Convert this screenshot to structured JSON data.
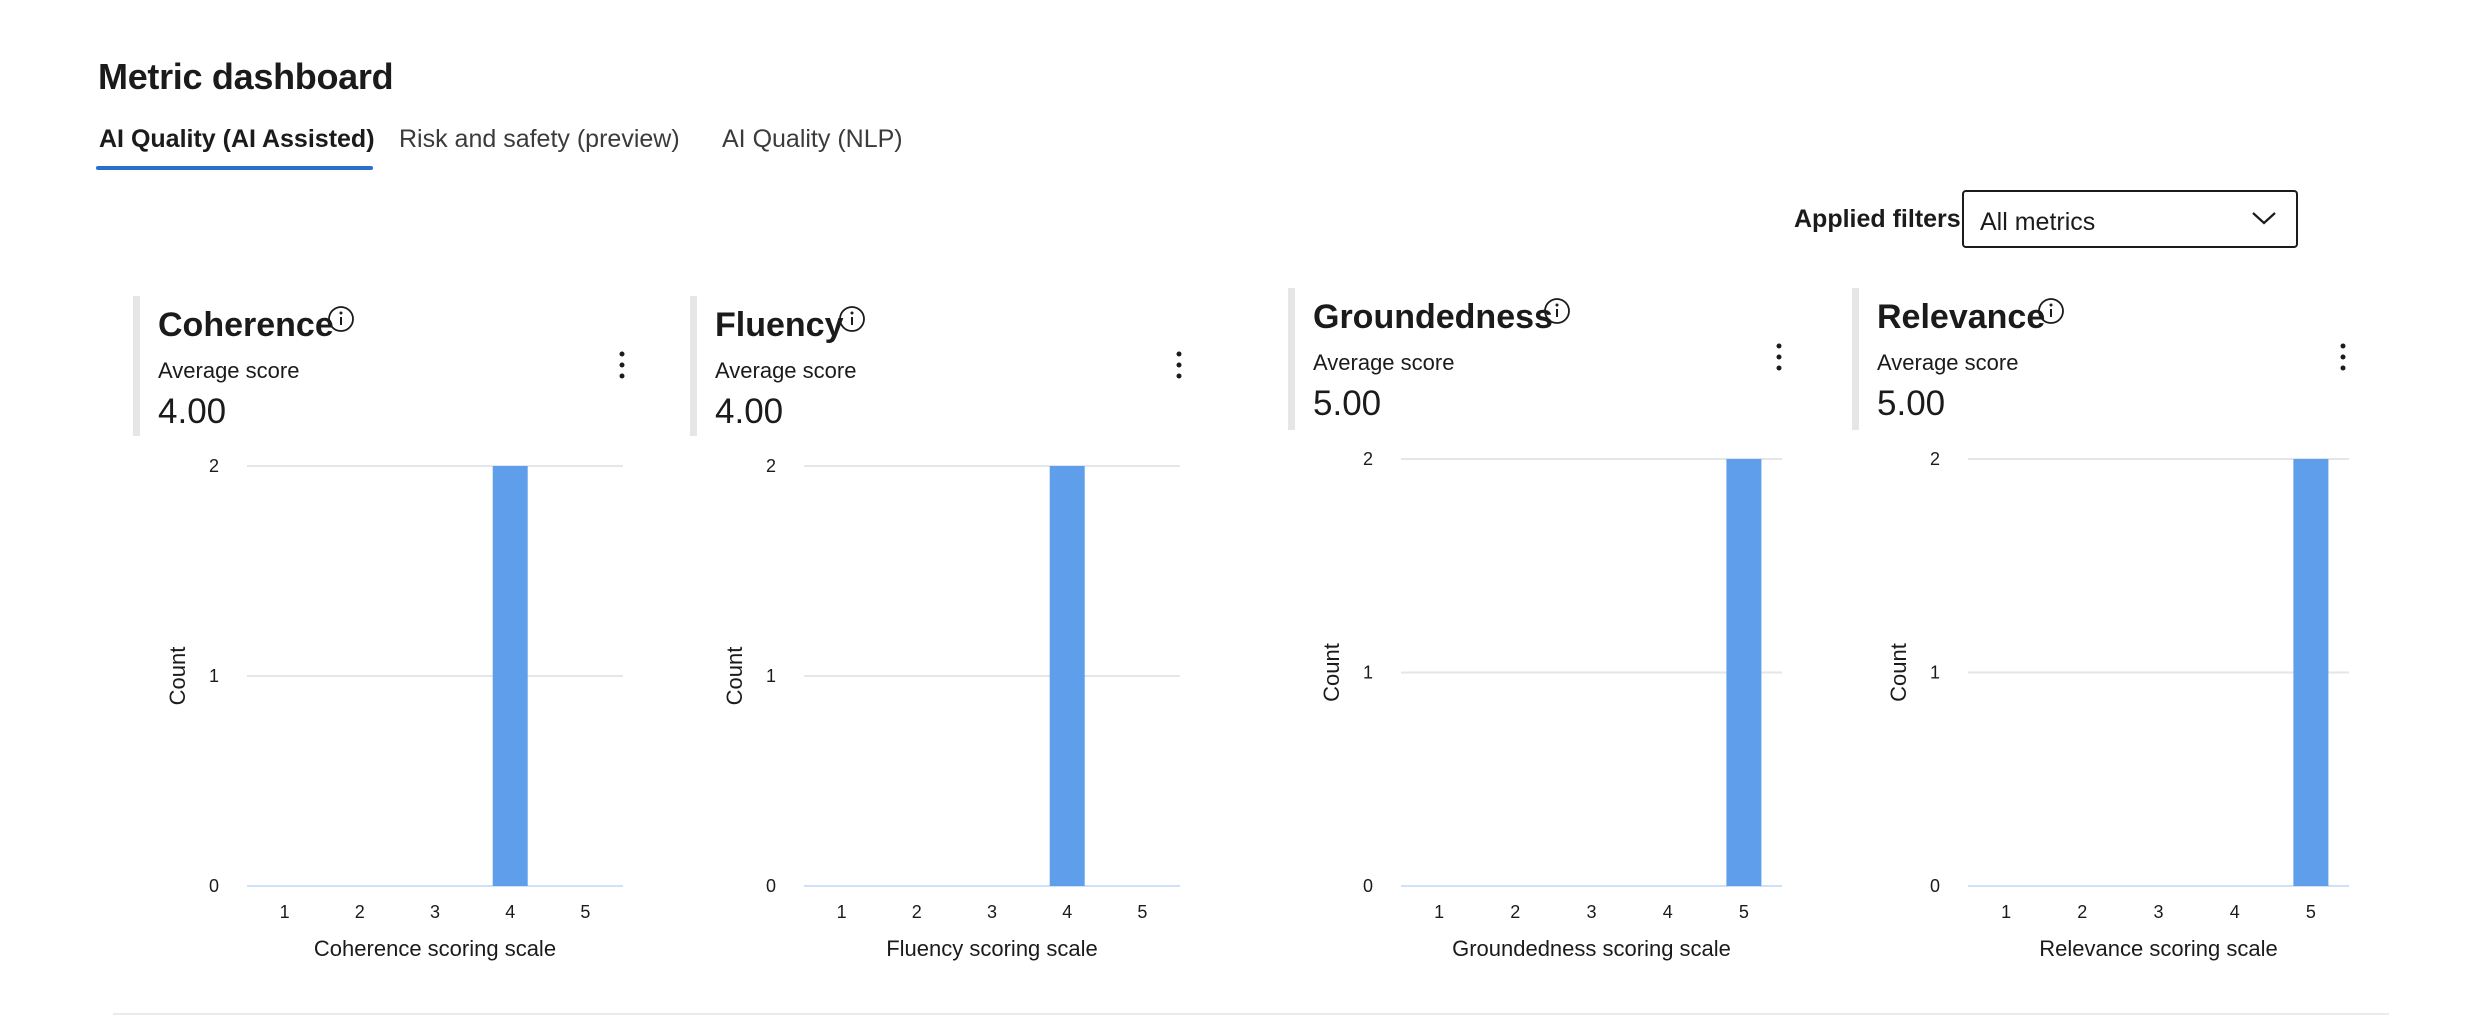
{
  "page": {
    "title": "Metric dashboard"
  },
  "tabs": [
    {
      "label": "AI Quality (AI Assisted)",
      "active": true
    },
    {
      "label": "Risk and safety (preview)",
      "active": false
    },
    {
      "label": "AI Quality (NLP)",
      "active": false
    }
  ],
  "filters": {
    "label": "Applied filters",
    "selected": "All metrics"
  },
  "icons": {
    "info": "info-icon",
    "more": "more-vertical-icon",
    "dropdown": "chevron-down-icon"
  },
  "colors": {
    "accent": "#2a6fc9",
    "bar": "#5e9eea",
    "grid": "#e3e6ea"
  },
  "metrics": [
    {
      "title": "Coherence",
      "score_label": "Average score",
      "score_value": "4.00"
    },
    {
      "title": "Fluency",
      "score_label": "Average score",
      "score_value": "4.00"
    },
    {
      "title": "Groundedness",
      "score_label": "Average score",
      "score_value": "5.00"
    },
    {
      "title": "Relevance",
      "score_label": "Average score",
      "score_value": "5.00"
    }
  ],
  "chart_data": [
    {
      "type": "bar",
      "categories": [
        "1",
        "2",
        "3",
        "4",
        "5"
      ],
      "values": [
        0,
        0,
        0,
        2,
        0
      ],
      "xlabel": "Coherence scoring scale",
      "ylabel": "Count",
      "ylim": [
        0,
        2
      ],
      "yticks": [
        "0",
        "1",
        "2"
      ],
      "grid": true
    },
    {
      "type": "bar",
      "categories": [
        "1",
        "2",
        "3",
        "4",
        "5"
      ],
      "values": [
        0,
        0,
        0,
        2,
        0
      ],
      "xlabel": "Fluency scoring scale",
      "ylabel": "Count",
      "ylim": [
        0,
        2
      ],
      "yticks": [
        "0",
        "1",
        "2"
      ],
      "grid": true
    },
    {
      "type": "bar",
      "categories": [
        "1",
        "2",
        "3",
        "4",
        "5"
      ],
      "values": [
        0,
        0,
        0,
        0,
        2
      ],
      "xlabel": "Groundedness scoring scale",
      "ylabel": "Count",
      "ylim": [
        0,
        2
      ],
      "yticks": [
        "0",
        "1",
        "2"
      ],
      "grid": true
    },
    {
      "type": "bar",
      "categories": [
        "1",
        "2",
        "3",
        "4",
        "5"
      ],
      "values": [
        0,
        0,
        0,
        0,
        2
      ],
      "xlabel": "Relevance scoring scale",
      "ylabel": "Count",
      "ylim": [
        0,
        2
      ],
      "yticks": [
        "0",
        "1",
        "2"
      ],
      "grid": true
    }
  ]
}
